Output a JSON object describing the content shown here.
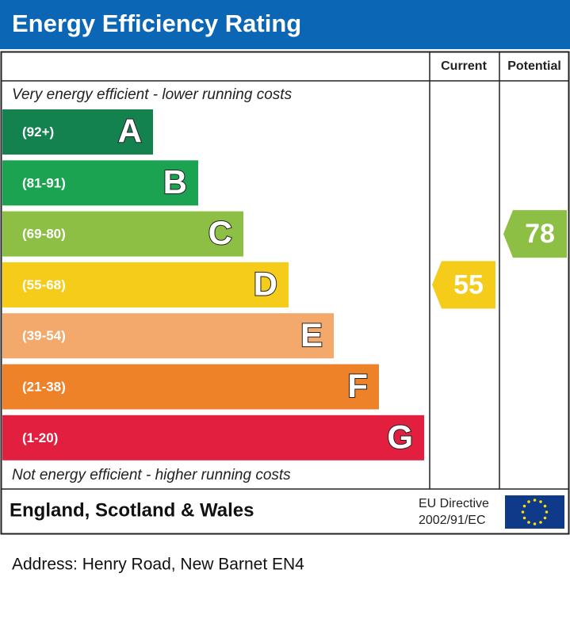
{
  "title": "Energy Efficiency Rating",
  "columns": [
    "Current",
    "Potential"
  ],
  "top_note": "Very energy efficient - lower running costs",
  "bands": [
    {
      "range": "(92+)",
      "letter": "A",
      "color": "#13824f"
    },
    {
      "range": "(81-91)",
      "letter": "B",
      "color": "#1ba351"
    },
    {
      "range": "(69-80)",
      "letter": "C",
      "color": "#8cbf44"
    },
    {
      "range": "(55-68)",
      "letter": "D",
      "color": "#f6cc1a"
    },
    {
      "range": "(39-54)",
      "letter": "E",
      "color": "#f2a96b"
    },
    {
      "range": "(21-38)",
      "letter": "F",
      "color": "#ee8229"
    },
    {
      "range": "(1-20)",
      "letter": "G",
      "color": "#e21f3e"
    }
  ],
  "bottom_note": "Not energy efficient - higher running costs",
  "current": 55,
  "potential": 78,
  "region": "England, Scotland & Wales",
  "directive": [
    "EU Directive",
    "2002/91/EC"
  ],
  "address": "Address: Henry Road, New Barnet EN4"
}
